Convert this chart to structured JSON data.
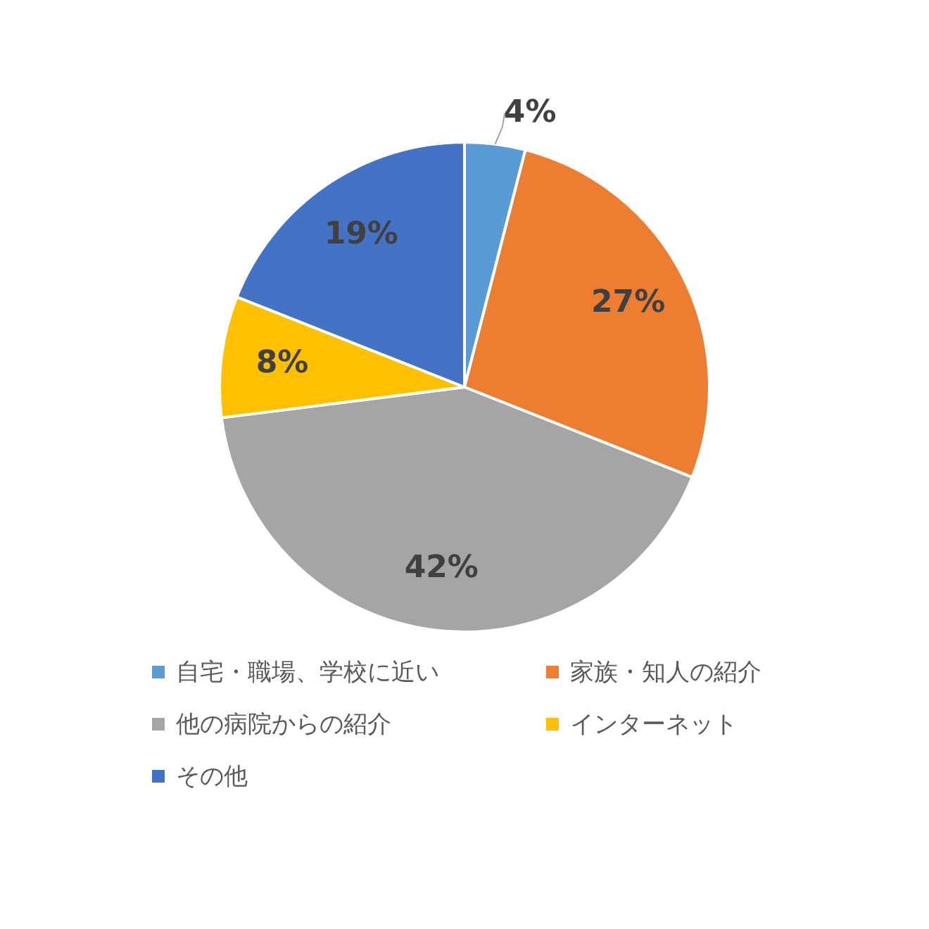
{
  "chart_data": {
    "type": "pie",
    "categories": [
      "自宅・職場、学校に近い",
      "家族・知人の紹介",
      "他の病院からの紹介",
      "インターネット",
      "その他"
    ],
    "values": [
      4,
      27,
      42,
      8,
      19
    ],
    "colors": [
      "#5b9bd5",
      "#ed7d31",
      "#a5a5a5",
      "#ffc000",
      "#4472c4"
    ],
    "value_labels": [
      "4%",
      "27%",
      "42%",
      "8%",
      "19%"
    ],
    "legend": "bottom"
  }
}
